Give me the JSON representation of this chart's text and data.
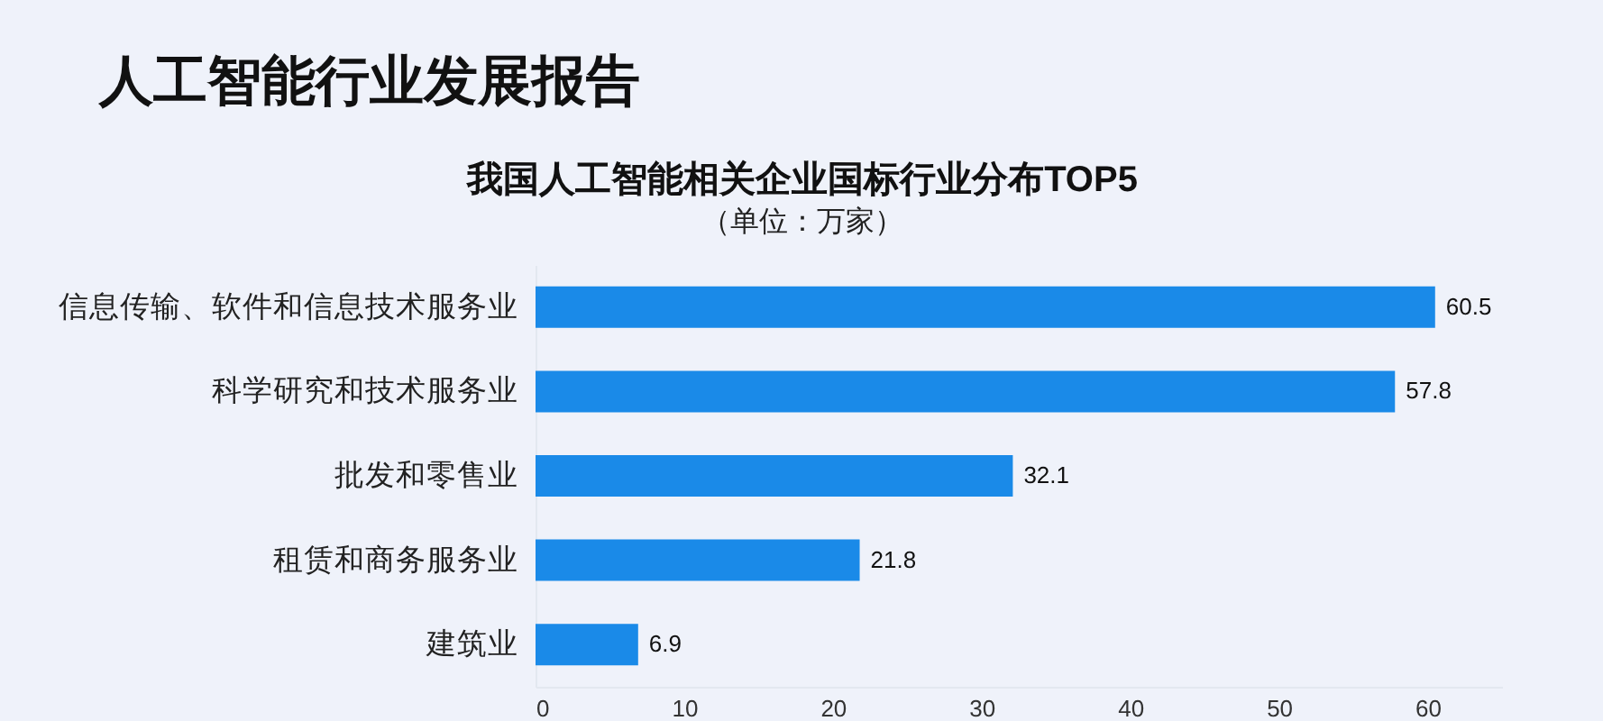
{
  "chart_data": {
    "type": "bar",
    "orientation": "horizontal",
    "title": "我国人工智能相关企业国标行业分布TOP5",
    "subtitle": "（单位：万家）",
    "annotations": [
      "人工智能行业发展报告"
    ],
    "categories": [
      "信息传输、软件和信息技术服务业",
      "科学研究和技术服务业",
      "批发和零售业",
      "租赁和商务服务业",
      "建筑业"
    ],
    "series": [
      {
        "color": "#1a8ae8",
        "values": [
          60.5,
          57.8,
          32.1,
          21.8,
          6.9
        ]
      }
    ],
    "xlim": [
      0,
      65
    ],
    "xticks": [
      0,
      10,
      20,
      30,
      40,
      50,
      60
    ],
    "data_labels": true,
    "grid": false
  }
}
